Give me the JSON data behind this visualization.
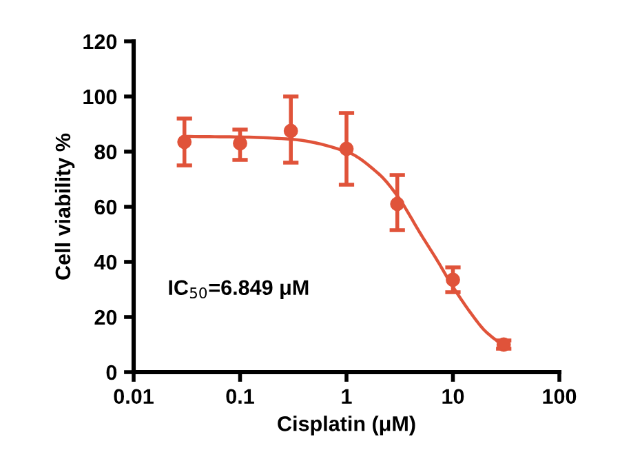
{
  "chart_data": {
    "type": "scatter",
    "xlabel": "Cisplatin (μM)",
    "ylabel": "Cell viability %",
    "annotations": [
      "IC$_{50}$=6.849 μM"
    ],
    "log": "x",
    "xlim": [
      0.01,
      100
    ],
    "xticks": [
      0.01,
      0.1,
      1,
      10,
      100
    ],
    "ylim": [
      0,
      120
    ],
    "yticks": [
      0,
      20,
      40,
      60,
      80,
      100,
      120
    ],
    "grid": false,
    "legend": false,
    "series": [
      {
        "color": "#e0533a",
        "marker": "circle",
        "x": [
          0.03,
          0.1,
          0.3,
          1,
          3,
          10,
          30
        ],
        "values": [
          83.5,
          83,
          87.5,
          81,
          61,
          33.5,
          10
        ],
        "errors": [
          [
            75,
            92
          ],
          [
            77,
            88
          ],
          [
            76,
            100
          ],
          [
            68,
            94
          ],
          [
            51.5,
            71.5
          ],
          [
            29,
            38
          ],
          [
            8.5,
            11.5
          ]
        ]
      },
      {
        "type": "line",
        "color": "#e0533a",
        "line_style": "solid",
        "marker": "none",
        "x": [
          0.03,
          0.1,
          0.3,
          1,
          2,
          3,
          5,
          7,
          10,
          15,
          20,
          30
        ],
        "values": [
          85.5,
          85.3,
          84.5,
          80,
          72,
          64,
          50,
          41,
          31,
          21,
          15,
          9.5
        ]
      }
    ]
  }
}
